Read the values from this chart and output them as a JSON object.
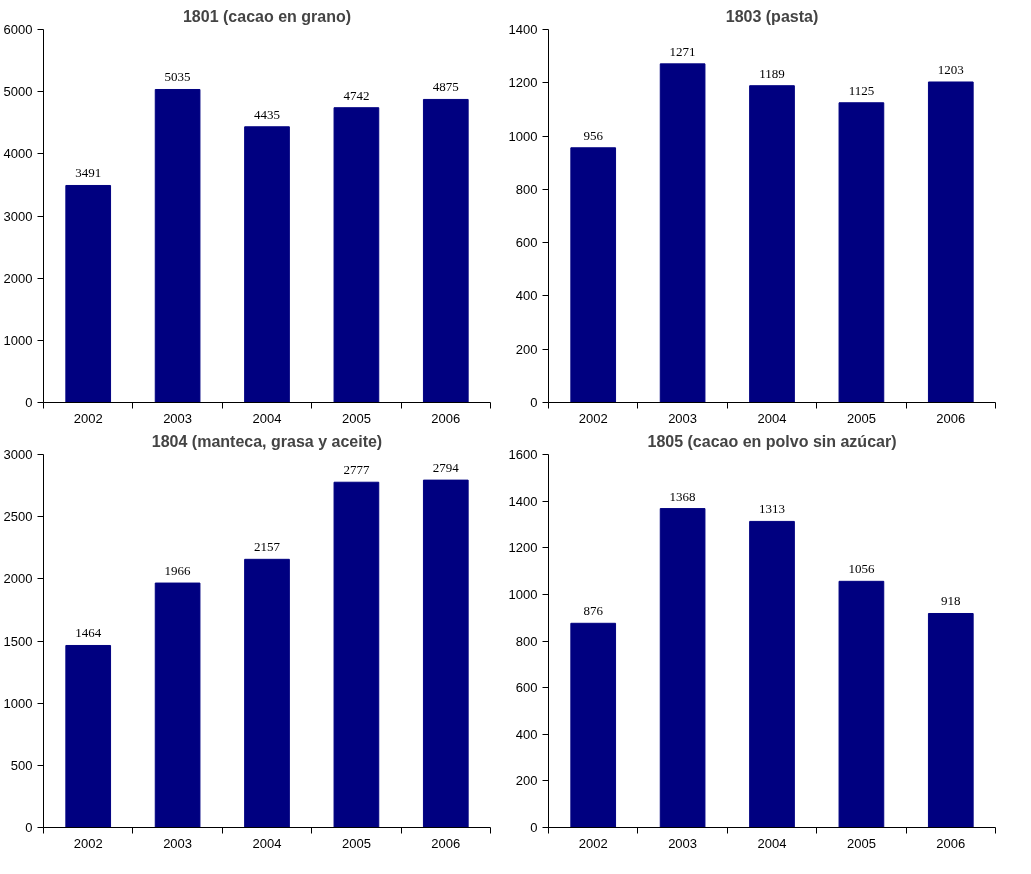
{
  "chart_data": [
    {
      "type": "bar",
      "title": "1801 (cacao en grano)",
      "categories": [
        "2002",
        "2003",
        "2004",
        "2005",
        "2006"
      ],
      "values": [
        3491,
        5035,
        4435,
        4742,
        4875
      ],
      "color": "#000080",
      "ylim": [
        0,
        6000
      ],
      "yticks": [
        0,
        1000,
        2000,
        3000,
        4000,
        5000,
        6000
      ],
      "data_labels": true,
      "grid": false,
      "legend": false
    },
    {
      "type": "bar",
      "title": "1803 (pasta)",
      "categories": [
        "2002",
        "2003",
        "2004",
        "2005",
        "2006"
      ],
      "values": [
        956,
        1271,
        1189,
        1125,
        1203
      ],
      "color": "#000080",
      "ylim": [
        0,
        1400
      ],
      "yticks": [
        0,
        200,
        400,
        600,
        800,
        1000,
        1200,
        1400
      ],
      "data_labels": true,
      "grid": false,
      "legend": false
    },
    {
      "type": "bar",
      "title": "1804 (manteca, grasa y aceite)",
      "categories": [
        "2002",
        "2003",
        "2004",
        "2005",
        "2006"
      ],
      "values": [
        1464,
        1966,
        2157,
        2777,
        2794
      ],
      "color": "#000080",
      "ylim": [
        0,
        3000
      ],
      "yticks": [
        0,
        500,
        1000,
        1500,
        2000,
        2500,
        3000
      ],
      "data_labels": true,
      "grid": false,
      "legend": false
    },
    {
      "type": "bar",
      "title": "1805 (cacao en polvo sin azúcar)",
      "categories": [
        "2002",
        "2003",
        "2004",
        "2005",
        "2006"
      ],
      "values": [
        876,
        1368,
        1313,
        1056,
        918
      ],
      "color": "#000080",
      "ylim": [
        0,
        1600
      ],
      "yticks": [
        0,
        200,
        400,
        600,
        800,
        1000,
        1200,
        1400,
        1600
      ],
      "data_labels": true,
      "grid": false,
      "legend": false
    }
  ]
}
